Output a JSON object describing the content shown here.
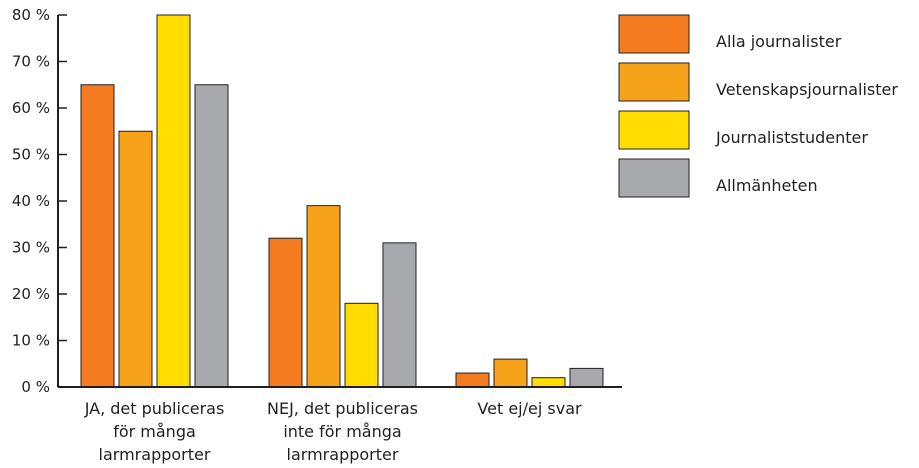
{
  "chart_data": {
    "type": "bar",
    "categories": [
      [
        "JA, det publiceras",
        "för många",
        "larmrapporter"
      ],
      [
        "NEJ, det publiceras",
        "inte för många",
        "larmrapporter"
      ],
      [
        "Vet ej/ej svar"
      ]
    ],
    "series": [
      {
        "name": "Alla journalister",
        "color": "#f47b20",
        "values": [
          65,
          32,
          3
        ]
      },
      {
        "name": "Vetenskapsjournalister",
        "color": "#f7a21b",
        "values": [
          55,
          39,
          6
        ]
      },
      {
        "name": "Journaliststudenter",
        "color": "#ffdd00",
        "values": [
          80,
          18,
          2
        ]
      },
      {
        "name": "Allmänheten",
        "color": "#a7a9ac",
        "values": [
          65,
          31,
          4
        ]
      }
    ],
    "yticks": [
      {
        "value": 0,
        "label": "0 %"
      },
      {
        "value": 10,
        "label": "10 %"
      },
      {
        "value": 20,
        "label": "20 %"
      },
      {
        "value": 30,
        "label": "30 %"
      },
      {
        "value": 40,
        "label": "40 %"
      },
      {
        "value": 50,
        "label": "50 %"
      },
      {
        "value": 60,
        "label": "60 %"
      },
      {
        "value": 70,
        "label": "70 %"
      },
      {
        "value": 80,
        "label": "80 %"
      }
    ],
    "ylim": [
      0,
      80
    ],
    "grid": false,
    "legend_position": "top-right",
    "title": "",
    "xlabel": "",
    "ylabel": ""
  }
}
